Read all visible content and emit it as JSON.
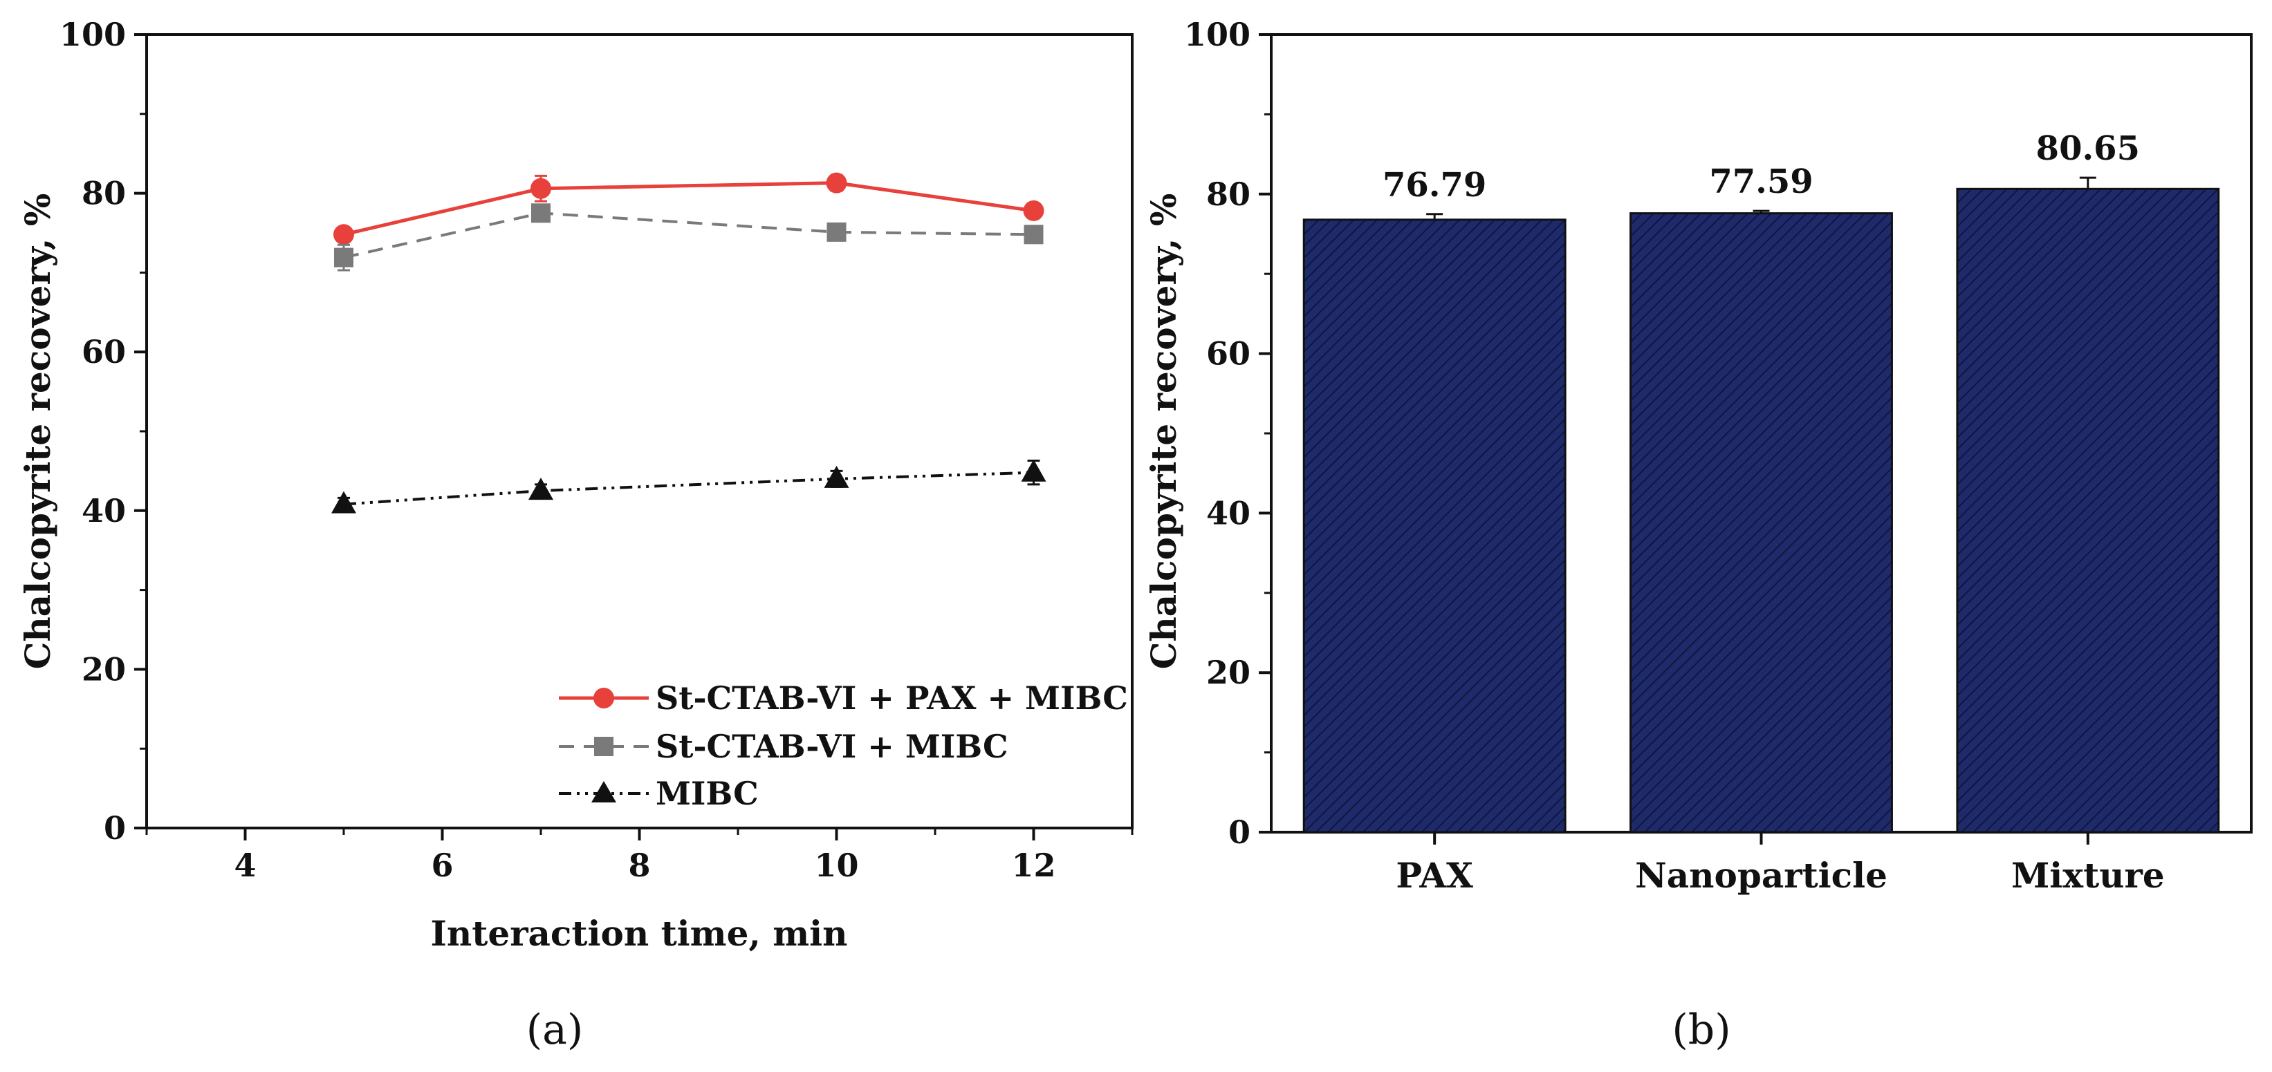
{
  "chart_data": [
    {
      "type": "line",
      "panel_label": "(a)",
      "xlabel": "Interaction time, min",
      "ylabel": "Chalcopyrite recovery, %",
      "xlim": [
        3,
        13
      ],
      "ylim": [
        0,
        100
      ],
      "xticks": [
        4,
        6,
        8,
        10,
        12
      ],
      "yticks": [
        0,
        20,
        40,
        60,
        80,
        100
      ],
      "grid": false,
      "legend_position": "bottom-right",
      "x": [
        5,
        7,
        10,
        12
      ],
      "series": [
        {
          "name": "St-CTAB-VI + PAX + MIBC",
          "values": [
            74.8,
            80.6,
            81.3,
            77.8
          ],
          "errors": [
            0.6,
            1.6,
            1.0,
            0.8
          ],
          "color": "#e8403a",
          "marker": "circle",
          "line_style": "solid"
        },
        {
          "name": "St-CTAB-VI + MIBC",
          "values": [
            71.9,
            77.5,
            75.1,
            74.8
          ],
          "errors": [
            1.6,
            0.7,
            0.6,
            0.6
          ],
          "color": "#7a7a7a",
          "marker": "square",
          "line_style": "dashed"
        },
        {
          "name": "MIBC",
          "values": [
            40.8,
            42.5,
            44.0,
            44.8
          ],
          "errors": [
            0.8,
            0.8,
            1.0,
            1.5
          ],
          "color": "#111111",
          "marker": "triangle",
          "line_style": "dash-dot-dot"
        }
      ]
    },
    {
      "type": "bar",
      "panel_label": "(b)",
      "xlabel": "",
      "ylabel": "Chalcopyrite recovery, %",
      "ylim": [
        0,
        100
      ],
      "yticks": [
        0,
        20,
        40,
        60,
        80,
        100
      ],
      "grid": false,
      "categories": [
        "PAX",
        "Nanoparticle",
        "Mixture"
      ],
      "values": [
        76.79,
        77.59,
        80.65
      ],
      "value_labels": [
        "76.79",
        "77.59",
        "80.65"
      ],
      "errors": [
        0.7,
        0.3,
        1.4
      ],
      "bar_color": "#1e2a6a",
      "hatch_color": "#0f1640"
    }
  ]
}
